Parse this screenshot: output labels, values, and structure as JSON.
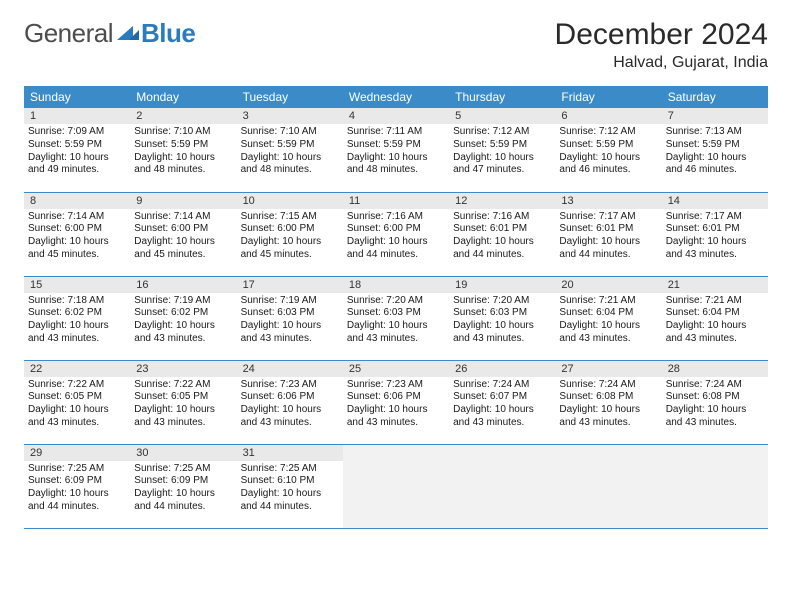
{
  "logo": {
    "part1": "General",
    "part2": "Blue"
  },
  "title": "December 2024",
  "location": "Halvad, Gujarat, India",
  "colors": {
    "header_bg": "#3b8bc9",
    "header_fg": "#ffffff",
    "daynum_bg": "#e9e9e9",
    "row_divider": "#3b8bc9",
    "logo_gray": "#4d4d4d",
    "logo_blue": "#2b7bbf"
  },
  "weekdays": [
    "Sunday",
    "Monday",
    "Tuesday",
    "Wednesday",
    "Thursday",
    "Friday",
    "Saturday"
  ],
  "weeks": [
    [
      {
        "n": "1",
        "sr": "Sunrise: 7:09 AM",
        "ss": "Sunset: 5:59 PM",
        "dl": "Daylight: 10 hours and 49 minutes."
      },
      {
        "n": "2",
        "sr": "Sunrise: 7:10 AM",
        "ss": "Sunset: 5:59 PM",
        "dl": "Daylight: 10 hours and 48 minutes."
      },
      {
        "n": "3",
        "sr": "Sunrise: 7:10 AM",
        "ss": "Sunset: 5:59 PM",
        "dl": "Daylight: 10 hours and 48 minutes."
      },
      {
        "n": "4",
        "sr": "Sunrise: 7:11 AM",
        "ss": "Sunset: 5:59 PM",
        "dl": "Daylight: 10 hours and 48 minutes."
      },
      {
        "n": "5",
        "sr": "Sunrise: 7:12 AM",
        "ss": "Sunset: 5:59 PM",
        "dl": "Daylight: 10 hours and 47 minutes."
      },
      {
        "n": "6",
        "sr": "Sunrise: 7:12 AM",
        "ss": "Sunset: 5:59 PM",
        "dl": "Daylight: 10 hours and 46 minutes."
      },
      {
        "n": "7",
        "sr": "Sunrise: 7:13 AM",
        "ss": "Sunset: 5:59 PM",
        "dl": "Daylight: 10 hours and 46 minutes."
      }
    ],
    [
      {
        "n": "8",
        "sr": "Sunrise: 7:14 AM",
        "ss": "Sunset: 6:00 PM",
        "dl": "Daylight: 10 hours and 45 minutes."
      },
      {
        "n": "9",
        "sr": "Sunrise: 7:14 AM",
        "ss": "Sunset: 6:00 PM",
        "dl": "Daylight: 10 hours and 45 minutes."
      },
      {
        "n": "10",
        "sr": "Sunrise: 7:15 AM",
        "ss": "Sunset: 6:00 PM",
        "dl": "Daylight: 10 hours and 45 minutes."
      },
      {
        "n": "11",
        "sr": "Sunrise: 7:16 AM",
        "ss": "Sunset: 6:00 PM",
        "dl": "Daylight: 10 hours and 44 minutes."
      },
      {
        "n": "12",
        "sr": "Sunrise: 7:16 AM",
        "ss": "Sunset: 6:01 PM",
        "dl": "Daylight: 10 hours and 44 minutes."
      },
      {
        "n": "13",
        "sr": "Sunrise: 7:17 AM",
        "ss": "Sunset: 6:01 PM",
        "dl": "Daylight: 10 hours and 44 minutes."
      },
      {
        "n": "14",
        "sr": "Sunrise: 7:17 AM",
        "ss": "Sunset: 6:01 PM",
        "dl": "Daylight: 10 hours and 43 minutes."
      }
    ],
    [
      {
        "n": "15",
        "sr": "Sunrise: 7:18 AM",
        "ss": "Sunset: 6:02 PM",
        "dl": "Daylight: 10 hours and 43 minutes."
      },
      {
        "n": "16",
        "sr": "Sunrise: 7:19 AM",
        "ss": "Sunset: 6:02 PM",
        "dl": "Daylight: 10 hours and 43 minutes."
      },
      {
        "n": "17",
        "sr": "Sunrise: 7:19 AM",
        "ss": "Sunset: 6:03 PM",
        "dl": "Daylight: 10 hours and 43 minutes."
      },
      {
        "n": "18",
        "sr": "Sunrise: 7:20 AM",
        "ss": "Sunset: 6:03 PM",
        "dl": "Daylight: 10 hours and 43 minutes."
      },
      {
        "n": "19",
        "sr": "Sunrise: 7:20 AM",
        "ss": "Sunset: 6:03 PM",
        "dl": "Daylight: 10 hours and 43 minutes."
      },
      {
        "n": "20",
        "sr": "Sunrise: 7:21 AM",
        "ss": "Sunset: 6:04 PM",
        "dl": "Daylight: 10 hours and 43 minutes."
      },
      {
        "n": "21",
        "sr": "Sunrise: 7:21 AM",
        "ss": "Sunset: 6:04 PM",
        "dl": "Daylight: 10 hours and 43 minutes."
      }
    ],
    [
      {
        "n": "22",
        "sr": "Sunrise: 7:22 AM",
        "ss": "Sunset: 6:05 PM",
        "dl": "Daylight: 10 hours and 43 minutes."
      },
      {
        "n": "23",
        "sr": "Sunrise: 7:22 AM",
        "ss": "Sunset: 6:05 PM",
        "dl": "Daylight: 10 hours and 43 minutes."
      },
      {
        "n": "24",
        "sr": "Sunrise: 7:23 AM",
        "ss": "Sunset: 6:06 PM",
        "dl": "Daylight: 10 hours and 43 minutes."
      },
      {
        "n": "25",
        "sr": "Sunrise: 7:23 AM",
        "ss": "Sunset: 6:06 PM",
        "dl": "Daylight: 10 hours and 43 minutes."
      },
      {
        "n": "26",
        "sr": "Sunrise: 7:24 AM",
        "ss": "Sunset: 6:07 PM",
        "dl": "Daylight: 10 hours and 43 minutes."
      },
      {
        "n": "27",
        "sr": "Sunrise: 7:24 AM",
        "ss": "Sunset: 6:08 PM",
        "dl": "Daylight: 10 hours and 43 minutes."
      },
      {
        "n": "28",
        "sr": "Sunrise: 7:24 AM",
        "ss": "Sunset: 6:08 PM",
        "dl": "Daylight: 10 hours and 43 minutes."
      }
    ],
    [
      {
        "n": "29",
        "sr": "Sunrise: 7:25 AM",
        "ss": "Sunset: 6:09 PM",
        "dl": "Daylight: 10 hours and 44 minutes."
      },
      {
        "n": "30",
        "sr": "Sunrise: 7:25 AM",
        "ss": "Sunset: 6:09 PM",
        "dl": "Daylight: 10 hours and 44 minutes."
      },
      {
        "n": "31",
        "sr": "Sunrise: 7:25 AM",
        "ss": "Sunset: 6:10 PM",
        "dl": "Daylight: 10 hours and 44 minutes."
      },
      null,
      null,
      null,
      null
    ]
  ]
}
